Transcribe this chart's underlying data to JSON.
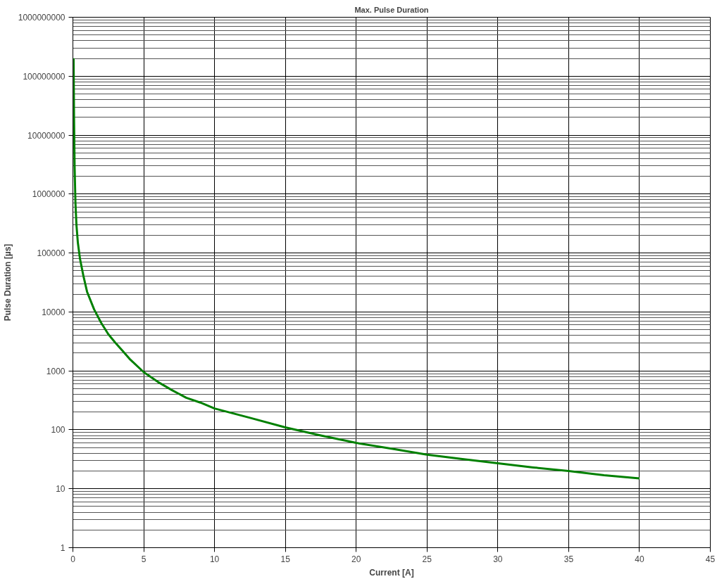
{
  "chart_data": {
    "type": "line",
    "title": "Max. Pulse Duration",
    "xlabel": "Current [A]",
    "ylabel": "Pulse Duration [µs]",
    "log": "y",
    "grid": true,
    "marker": "none",
    "line_style": "solid",
    "xlim": [
      0,
      45
    ],
    "xticks": [
      0,
      5,
      10,
      15,
      20,
      25,
      30,
      35,
      40,
      45
    ],
    "ylim": [
      1,
      1000000000
    ],
    "yticks": [
      1,
      10,
      100,
      1000,
      10000,
      100000,
      1000000,
      10000000,
      100000000,
      1000000000
    ],
    "series": [
      {
        "color": "#008000",
        "x": [
          0.05,
          0.08,
          0.12,
          0.18,
          0.25,
          0.35,
          0.5,
          0.75,
          1.0,
          1.5,
          2.0,
          2.5,
          3.0,
          3.5,
          4.0,
          5.0,
          6.0,
          7.0,
          8.0,
          9.0,
          10.0,
          12.5,
          15.0,
          17.5,
          20.0,
          22.5,
          25.0,
          27.5,
          30.0,
          32.5,
          35.0,
          37.5,
          40.0
        ],
        "values": [
          200000000,
          20000000,
          3000000,
          700000,
          300000,
          150000,
          80000,
          40000,
          22000,
          11000,
          6500,
          4200,
          3000,
          2200,
          1600,
          950,
          650,
          470,
          350,
          290,
          230,
          160,
          110,
          80,
          60,
          48,
          38,
          32,
          27,
          23,
          20,
          17,
          15
        ]
      }
    ]
  }
}
